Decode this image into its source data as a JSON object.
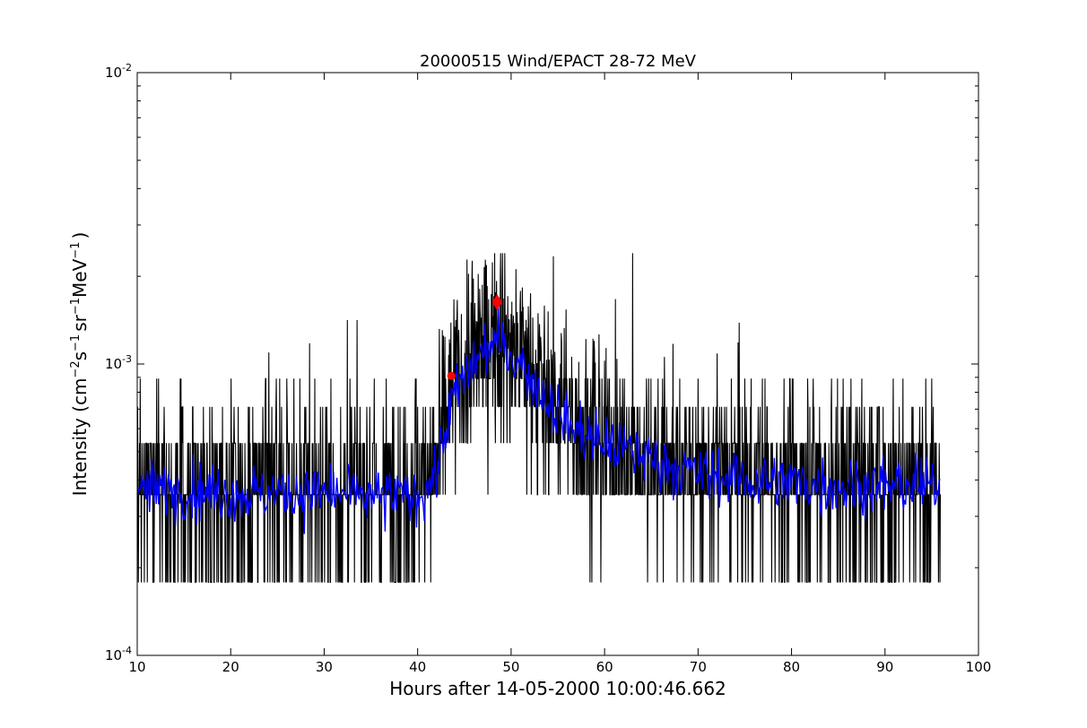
{
  "chart_data": {
    "type": "line",
    "title": "20000515 Wind/EPACT 28-72 MeV",
    "xlabel": "Hours after 14-05-2000 10:00:46.662",
    "ylabel": {
      "prefix": "Intensity (cm",
      "exp1": "−2",
      "mid1": "s",
      "exp2": "−1",
      "mid2": "sr",
      "exp3": "−1",
      "mid3": "MeV",
      "exp4": "−1",
      "suffix": ")"
    },
    "xlim": [
      10,
      100
    ],
    "ylim": [
      0.0001,
      0.01
    ],
    "yscale": "log",
    "grid": false,
    "x_ticks": [
      10,
      20,
      30,
      40,
      50,
      60,
      70,
      80,
      90,
      100
    ],
    "x_tick_labels": [
      "10",
      "20",
      "30",
      "40",
      "50",
      "60",
      "70",
      "80",
      "90",
      "100"
    ],
    "y_ticks": [
      {
        "value": 0.0001,
        "base": "10",
        "exp": "-4"
      },
      {
        "value": 0.001,
        "base": "10",
        "exp": "-3"
      },
      {
        "value": 0.01,
        "base": "10",
        "exp": "-2"
      }
    ],
    "raw_levels": [
      0.000178,
      0.000356,
      0.000535,
      0.000713,
      0.000891
    ],
    "raw_trend": [
      [
        10,
        0.00036
      ],
      [
        20,
        0.00036
      ],
      [
        30,
        0.00036
      ],
      [
        38,
        0.00036
      ],
      [
        42,
        0.00042
      ],
      [
        43,
        0.00066
      ],
      [
        44,
        0.00086
      ],
      [
        46,
        0.00105
      ],
      [
        48,
        0.00125
      ],
      [
        50,
        0.00115
      ],
      [
        52,
        0.00095
      ],
      [
        54,
        0.0008
      ],
      [
        56,
        0.00066
      ],
      [
        58,
        0.00058
      ],
      [
        60,
        0.00052
      ],
      [
        62,
        0.00048
      ],
      [
        65,
        0.00045
      ],
      [
        70,
        0.00041
      ],
      [
        80,
        0.00038
      ],
      [
        96,
        0.00037
      ]
    ],
    "smoothed_trend": [
      [
        10,
        0.00037
      ],
      [
        15,
        0.00037
      ],
      [
        20,
        0.00036
      ],
      [
        25,
        0.00036
      ],
      [
        30,
        0.00036
      ],
      [
        35,
        0.00035
      ],
      [
        40,
        0.00035
      ],
      [
        42,
        0.00042
      ],
      [
        43,
        0.0006
      ],
      [
        44,
        0.00078
      ],
      [
        45,
        0.0009
      ],
      [
        46,
        0.001
      ],
      [
        47,
        0.0011
      ],
      [
        48,
        0.00118
      ],
      [
        49,
        0.00115
      ],
      [
        50,
        0.00108
      ],
      [
        51,
        0.001
      ],
      [
        52,
        0.0009
      ],
      [
        53,
        0.00082
      ],
      [
        54,
        0.00075
      ],
      [
        55,
        0.00068
      ],
      [
        56,
        0.00062
      ],
      [
        58,
        0.00057
      ],
      [
        60,
        0.00053
      ],
      [
        62,
        0.00051
      ],
      [
        64,
        0.00049
      ],
      [
        66,
        0.00046
      ],
      [
        70,
        0.00042
      ],
      [
        75,
        0.0004
      ],
      [
        80,
        0.00039
      ],
      [
        85,
        0.00038
      ],
      [
        90,
        0.00038
      ],
      [
        96,
        0.00038
      ]
    ],
    "x_end": 96,
    "series": [
      {
        "style": "raw",
        "color": "#000000"
      },
      {
        "style": "smoothed",
        "color": "#0000ff"
      }
    ],
    "markers": [
      {
        "x": 43.6,
        "y": 0.00091,
        "shape": "circle",
        "color": "#ff0000"
      },
      {
        "x": 48.5,
        "y": 0.00163,
        "shape": "diamond",
        "color": "#ff0000"
      }
    ]
  }
}
